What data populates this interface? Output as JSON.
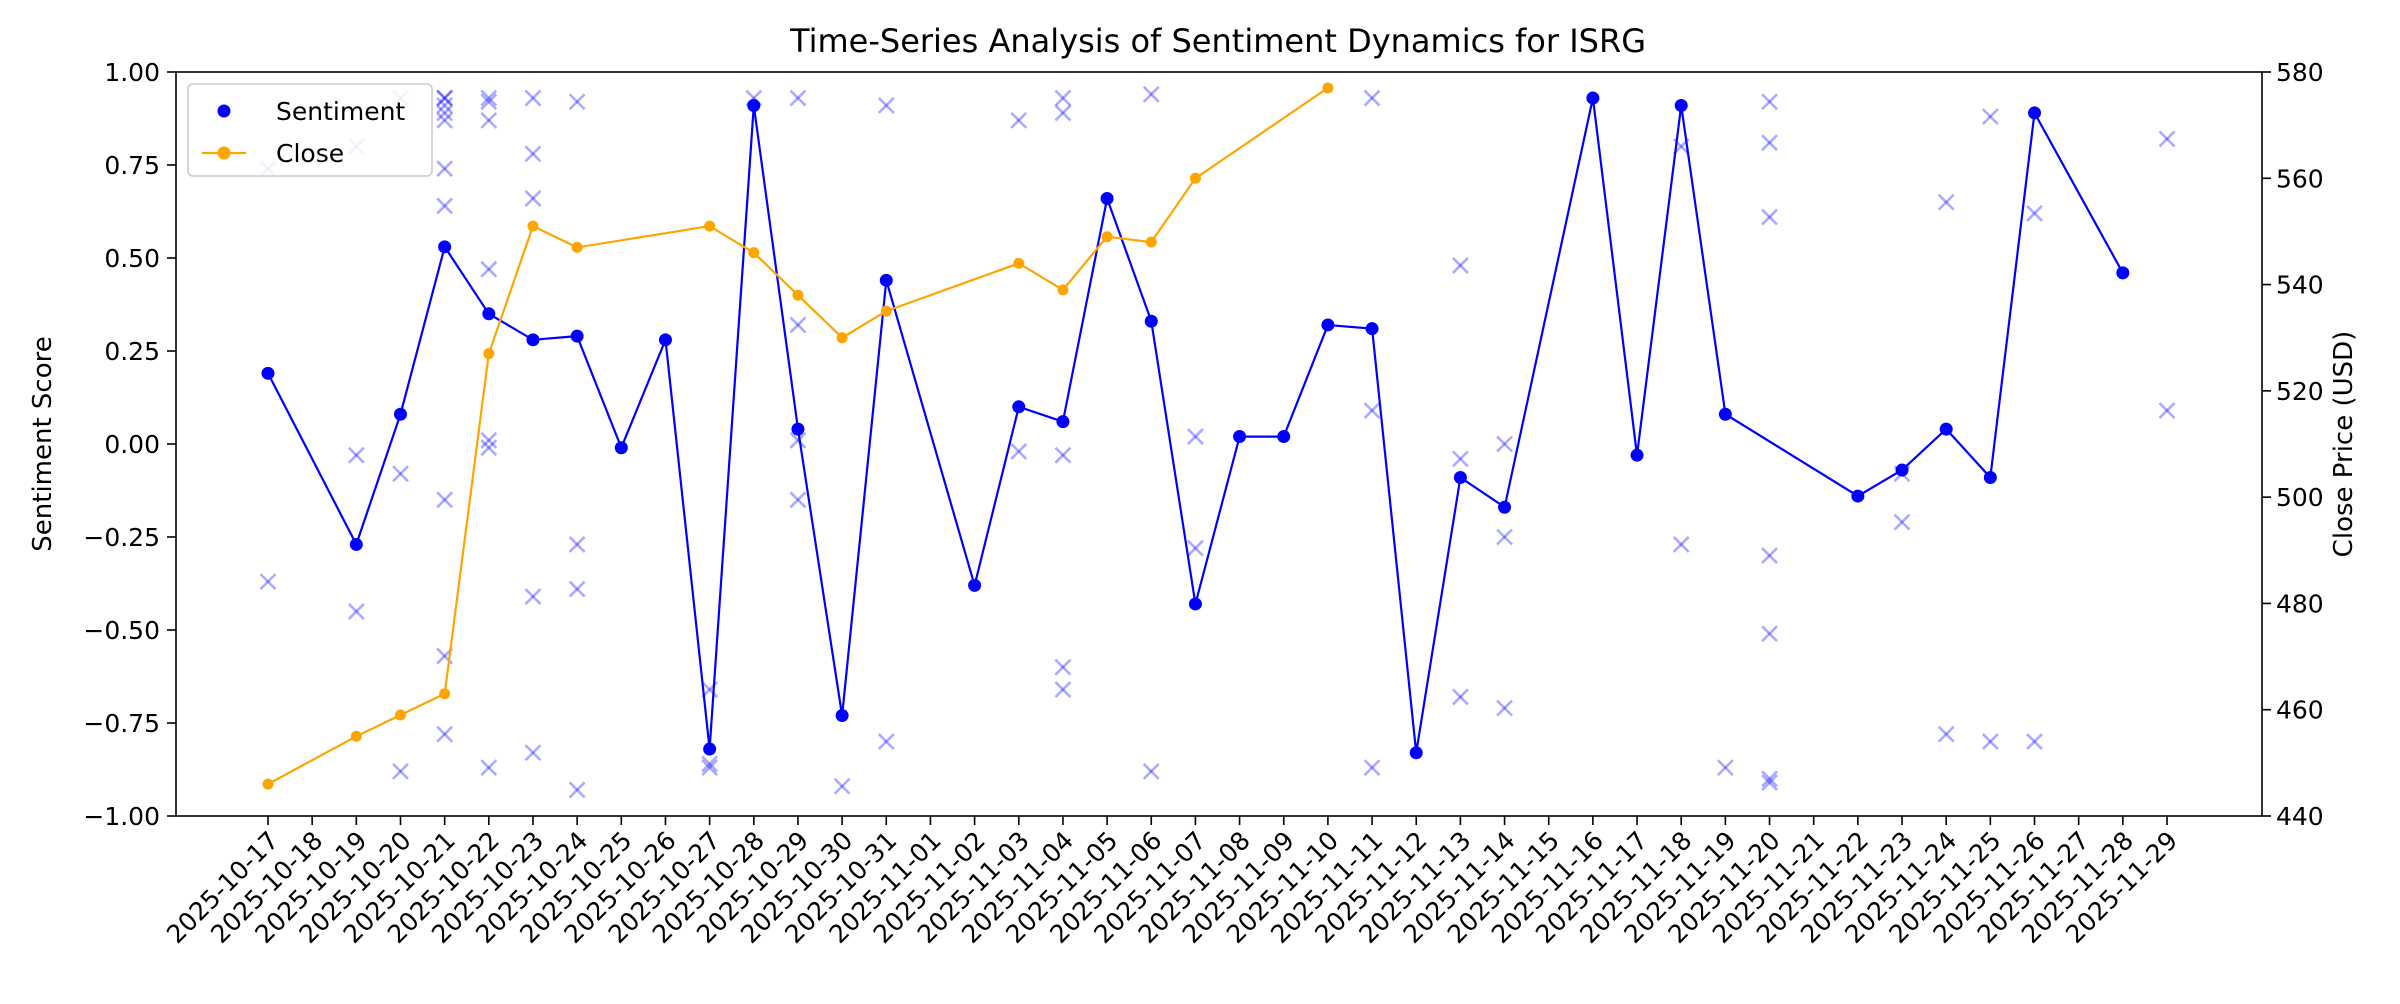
{
  "chart_data": {
    "type": "line",
    "title": "Time-Series Analysis of Sentiment Dynamics for ISRG",
    "xlabel": "",
    "ylabel_left": "Sentiment Score",
    "ylabel_right": "Close Price (USD)",
    "ylim_left": [
      -1.0,
      1.0
    ],
    "ylim_right": [
      440,
      580
    ],
    "left_ticks": [
      "−1.00",
      "−0.75",
      "−0.50",
      "−0.25",
      "0.00",
      "0.25",
      "0.50",
      "0.75",
      "1.00"
    ],
    "right_ticks": [
      "440",
      "460",
      "480",
      "500",
      "520",
      "540",
      "560",
      "580"
    ],
    "grid": false,
    "legend_position": "top-left",
    "legend": [
      {
        "label": "Sentiment",
        "color": "#0000ff",
        "marker": "dot"
      },
      {
        "label": "Close",
        "color": "#ffa500",
        "marker": "dot-line"
      }
    ],
    "x_dates": [
      "2025-10-17",
      "2025-10-18",
      "2025-10-19",
      "2025-10-20",
      "2025-10-21",
      "2025-10-22",
      "2025-10-23",
      "2025-10-24",
      "2025-10-25",
      "2025-10-26",
      "2025-10-27",
      "2025-10-28",
      "2025-10-29",
      "2025-10-30",
      "2025-10-31",
      "2025-11-01",
      "2025-11-02",
      "2025-11-03",
      "2025-11-04",
      "2025-11-05",
      "2025-11-06",
      "2025-11-07",
      "2025-11-08",
      "2025-11-09",
      "2025-11-10",
      "2025-11-11",
      "2025-11-12",
      "2025-11-13",
      "2025-11-14",
      "2025-11-15",
      "2025-11-16",
      "2025-11-17",
      "2025-11-18",
      "2025-11-19",
      "2025-11-20",
      "2025-11-21",
      "2025-11-22",
      "2025-11-23",
      "2025-11-24",
      "2025-11-25",
      "2025-11-26",
      "2025-11-27",
      "2025-11-28",
      "2025-11-29"
    ],
    "series": [
      {
        "name": "Sentiment",
        "axis": "left",
        "color": "#0000ff",
        "x": [
          "2025-10-17",
          "2025-10-19",
          "2025-10-20",
          "2025-10-21",
          "2025-10-22",
          "2025-10-23",
          "2025-10-24",
          "2025-10-25",
          "2025-10-26",
          "2025-10-27",
          "2025-10-28",
          "2025-10-29",
          "2025-10-30",
          "2025-10-31",
          "2025-11-02",
          "2025-11-03",
          "2025-11-04",
          "2025-11-05",
          "2025-11-06",
          "2025-11-07",
          "2025-11-08",
          "2025-11-09",
          "2025-11-10",
          "2025-11-11",
          "2025-11-12",
          "2025-11-13",
          "2025-11-14",
          "2025-11-16",
          "2025-11-17",
          "2025-11-18",
          "2025-11-19",
          "2025-11-22",
          "2025-11-23",
          "2025-11-24",
          "2025-11-25",
          "2025-11-26",
          "2025-11-28"
        ],
        "y": [
          0.19,
          -0.27,
          0.08,
          0.53,
          0.35,
          0.28,
          0.29,
          -0.01,
          0.28,
          -0.82,
          0.91,
          0.04,
          -0.73,
          0.44,
          -0.38,
          0.1,
          0.06,
          0.66,
          0.33,
          -0.43,
          0.02,
          0.02,
          0.32,
          0.31,
          -0.83,
          -0.09,
          -0.17,
          0.93,
          -0.03,
          0.91,
          0.08,
          -0.14,
          -0.07,
          0.04,
          -0.09,
          0.89,
          0.46
        ]
      },
      {
        "name": "Close",
        "axis": "right",
        "color": "#ffa500",
        "x": [
          "2025-10-17",
          "2025-10-19",
          "2025-10-20",
          "2025-10-21",
          "2025-10-22",
          "2025-10-23",
          "2025-10-24",
          "2025-10-27",
          "2025-10-28",
          "2025-10-29",
          "2025-10-30",
          "2025-10-31",
          "2025-11-03",
          "2025-11-04",
          "2025-11-05",
          "2025-11-06",
          "2025-11-07",
          "2025-11-10"
        ],
        "y": [
          446,
          455,
          459,
          463,
          527,
          551,
          547,
          551,
          546,
          538,
          530,
          535,
          544,
          539,
          549,
          548,
          560,
          577
        ]
      },
      {
        "axis": "left",
        "color": "#0000ff",
        "marker": "x",
        "x": [
          "2025-10-17",
          "2025-10-17",
          "2025-10-19",
          "2025-10-19",
          "2025-10-19",
          "2025-10-20",
          "2025-10-20",
          "2025-10-20",
          "2025-10-21",
          "2025-10-21",
          "2025-10-21",
          "2025-10-21",
          "2025-10-21",
          "2025-10-21",
          "2025-10-21",
          "2025-10-21",
          "2025-10-21",
          "2025-10-21",
          "2025-10-22",
          "2025-10-22",
          "2025-10-22",
          "2025-10-22",
          "2025-10-22",
          "2025-10-22",
          "2025-10-22",
          "2025-10-23",
          "2025-10-23",
          "2025-10-23",
          "2025-10-23",
          "2025-10-23",
          "2025-10-24",
          "2025-10-24",
          "2025-10-24",
          "2025-10-24",
          "2025-10-27",
          "2025-10-27",
          "2025-10-27",
          "2025-10-28",
          "2025-10-29",
          "2025-10-29",
          "2025-10-29",
          "2025-10-29",
          "2025-10-30",
          "2025-10-31",
          "2025-10-31",
          "2025-11-03",
          "2025-11-03",
          "2025-11-04",
          "2025-11-04",
          "2025-11-04",
          "2025-11-04",
          "2025-11-04",
          "2025-11-06",
          "2025-11-06",
          "2025-11-07",
          "2025-11-07",
          "2025-11-11",
          "2025-11-11",
          "2025-11-11",
          "2025-11-13",
          "2025-11-13",
          "2025-11-13",
          "2025-11-14",
          "2025-11-14",
          "2025-11-14",
          "2025-11-18",
          "2025-11-18",
          "2025-11-19",
          "2025-11-20",
          "2025-11-20",
          "2025-11-20",
          "2025-11-20",
          "2025-11-20",
          "2025-11-20",
          "2025-11-20",
          "2025-11-23",
          "2025-11-23",
          "2025-11-24",
          "2025-11-24",
          "2025-11-25",
          "2025-11-25",
          "2025-11-26",
          "2025-11-26",
          "2025-11-29",
          "2025-11-29"
        ],
        "y": [
          0.74,
          -0.37,
          0.8,
          -0.03,
          -0.45,
          -0.88,
          0.93,
          -0.08,
          0.93,
          0.93,
          0.91,
          0.89,
          0.87,
          0.74,
          0.64,
          -0.15,
          -0.57,
          -0.78,
          -0.87,
          0.93,
          0.92,
          0.87,
          0.47,
          0.01,
          -0.01,
          -0.83,
          0.93,
          0.78,
          0.66,
          -0.41,
          -0.93,
          0.92,
          -0.27,
          -0.39,
          -0.66,
          -0.86,
          -0.87,
          0.93,
          0.93,
          0.32,
          0.01,
          -0.15,
          -0.92,
          -0.8,
          0.91,
          -0.02,
          0.87,
          -0.66,
          0.93,
          0.89,
          -0.03,
          -0.6,
          -0.88,
          0.94,
          -0.28,
          0.02,
          -0.87,
          0.93,
          0.09,
          -0.68,
          0.48,
          -0.04,
          -0.71,
          0.0,
          -0.25,
          -0.27,
          0.8,
          -0.87,
          0.92,
          0.81,
          0.61,
          -0.3,
          -0.51,
          -0.91,
          -0.9,
          -0.08,
          -0.21,
          0.65,
          -0.78,
          0.88,
          -0.8,
          0.62,
          -0.8,
          0.82,
          0.09
        ]
      }
    ]
  }
}
